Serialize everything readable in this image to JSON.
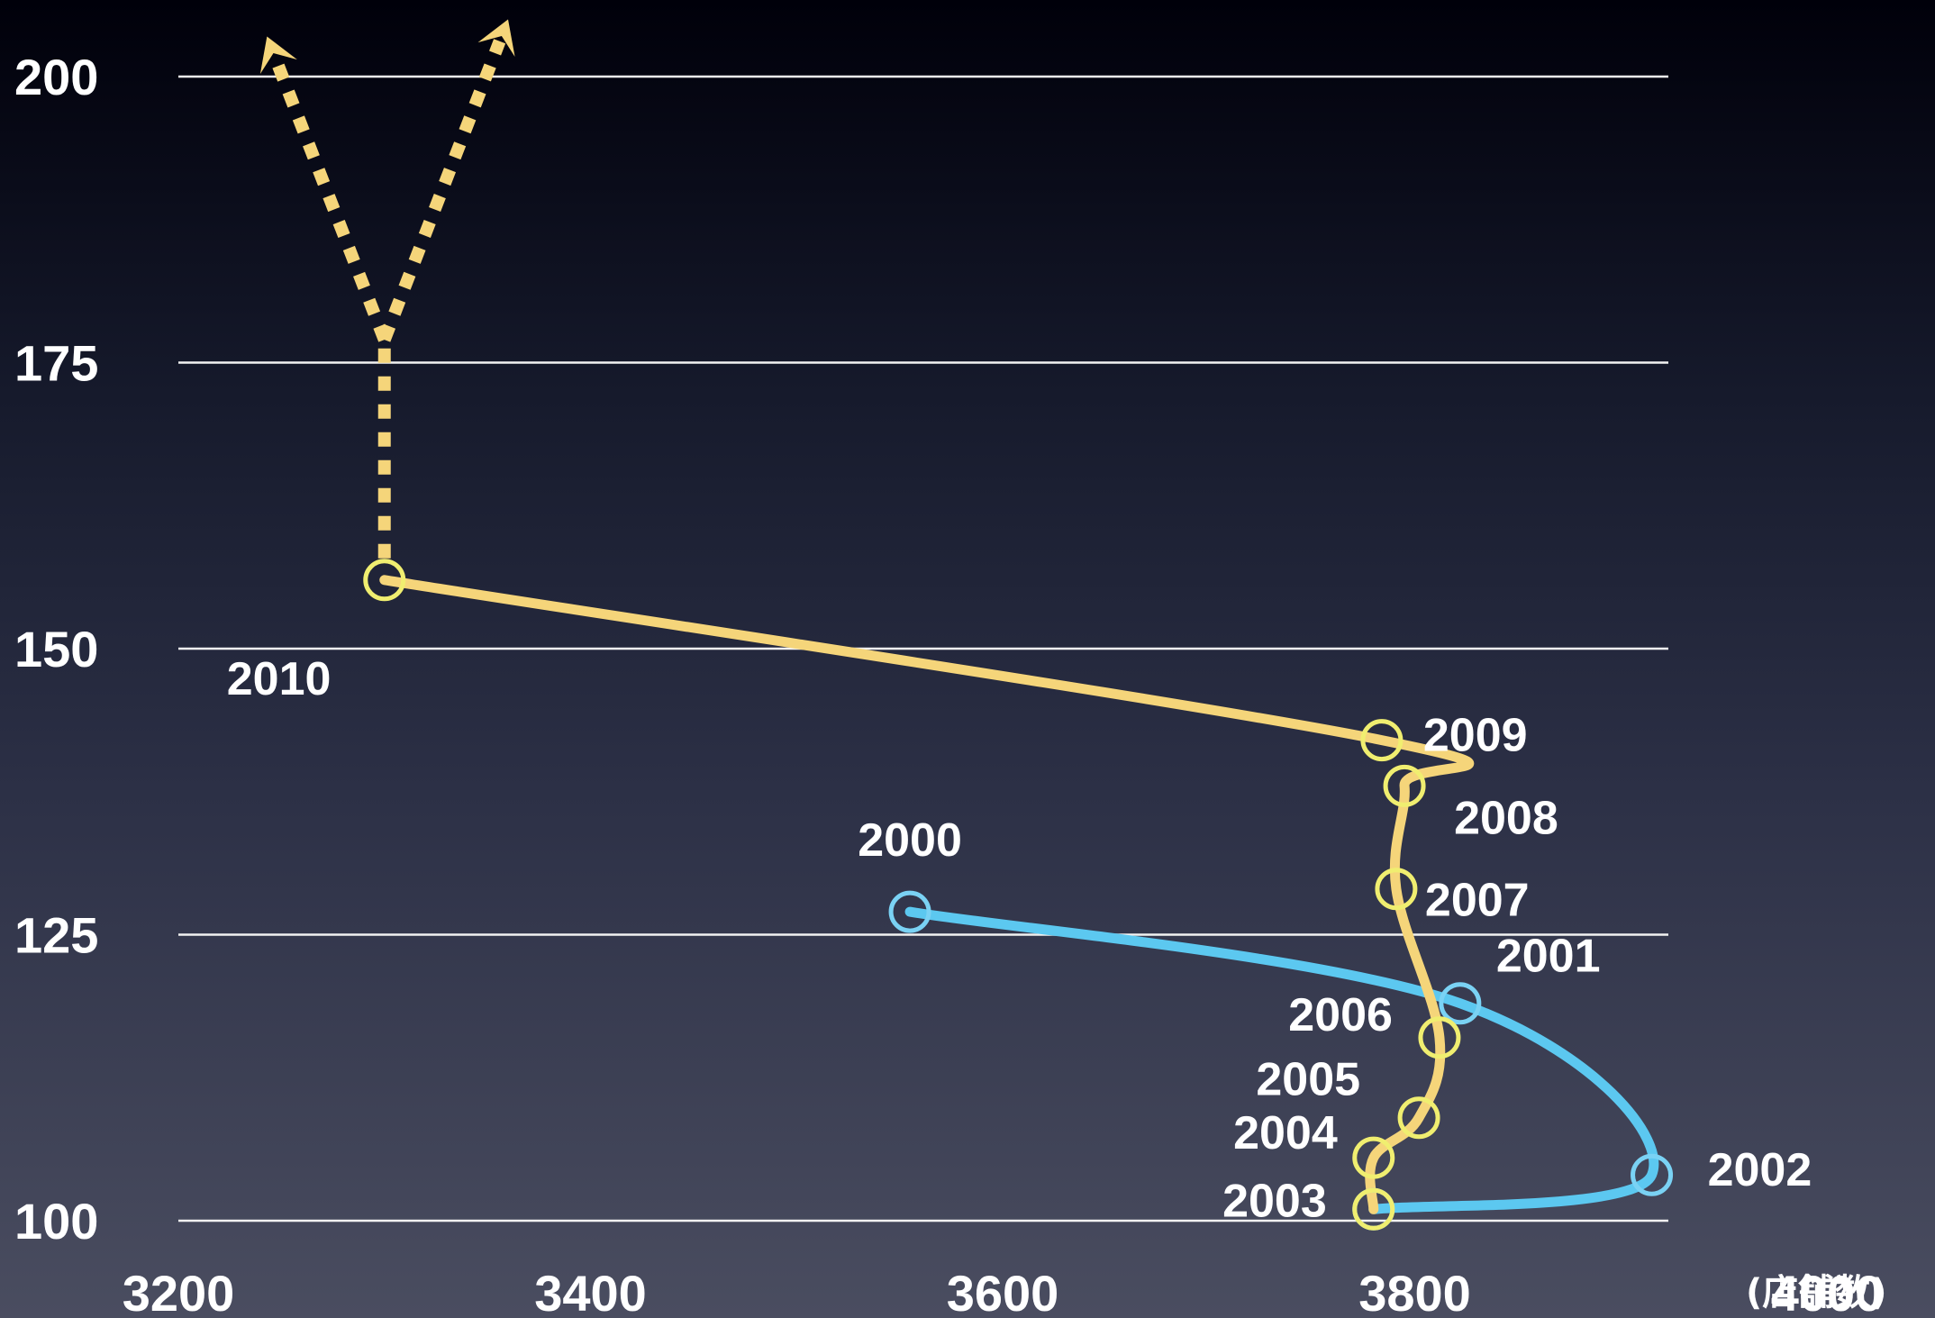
{
  "chart_data": {
    "type": "line",
    "title": "",
    "xlabel": "",
    "ylabel": "",
    "x_unit": "(店舗数)",
    "xlim": [
      3200,
      4000
    ],
    "ylim": [
      100,
      200
    ],
    "x_ticks": [
      "3200",
      "3400",
      "3600",
      "3800",
      "4000"
    ],
    "y_ticks": [
      "100",
      "125",
      "150",
      "175",
      "200"
    ],
    "grid": true,
    "series": [
      {
        "color": "#5cc8f0",
        "points": [
          {
            "label": "2000",
            "x": 3555,
            "y": 127
          },
          {
            "label": "2001",
            "x": 3822,
            "y": 119
          },
          {
            "label": "2002",
            "x": 3915,
            "y": 104
          },
          {
            "label": "2003",
            "x": 3780,
            "y": 101
          }
        ]
      },
      {
        "color": "#f5d57a",
        "points": [
          {
            "label": "2003",
            "x": 3780,
            "y": 101
          },
          {
            "label": "2004",
            "x": 3780,
            "y": 105.5
          },
          {
            "label": "2005",
            "x": 3802,
            "y": 109
          },
          {
            "label": "2006",
            "x": 3812,
            "y": 116
          },
          {
            "label": "2007",
            "x": 3791,
            "y": 129
          },
          {
            "label": "2008",
            "x": 3795,
            "y": 138
          },
          {
            "label": "2009",
            "x": 3784,
            "y": 142
          },
          {
            "label": "2010",
            "x": 3300,
            "y": 156
          }
        ]
      }
    ],
    "projection": {
      "color": "#f5d57a",
      "style": "dashed-arrows",
      "from": {
        "x": 3300,
        "y": 156
      },
      "branch_point": {
        "x": 3300,
        "y": 177
      },
      "arrow_targets": [
        {
          "x": 3243,
          "y": 203.5
        },
        {
          "x": 3360,
          "y": 205
        }
      ]
    }
  }
}
